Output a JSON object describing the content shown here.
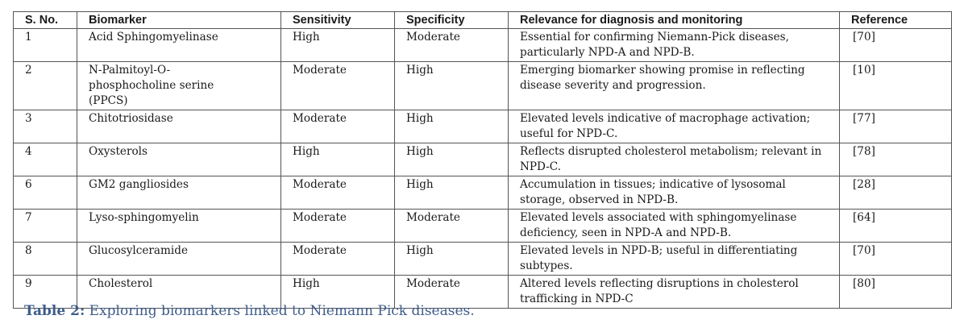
{
  "table": {
    "headers": [
      "S. No.",
      "Biomarker",
      "Sensitivity",
      "Specificity",
      "Relevance for diagnosis and monitoring",
      "Reference"
    ],
    "rows": [
      [
        "1",
        "Acid Sphingomyelinase",
        "High",
        "Moderate",
        "Essential for confirming Niemann-Pick diseases, particularly NPD-A and NPD-B.",
        "[70]"
      ],
      [
        "2",
        "N-Palmitoyl-O-phosphocholine serine (PPCS)",
        "Moderate",
        "High",
        "Emerging biomarker showing promise in reflecting disease severity and progression.",
        "[10]"
      ],
      [
        "3",
        "Chitotriosidase",
        "Moderate",
        "High",
        "Elevated levels indicative of macrophage activation; useful for NPD-C.",
        "[77]"
      ],
      [
        "4",
        "Oxysterols",
        "High",
        "High",
        "Reflects disrupted cholesterol metabolism; relevant in NPD-C.",
        "[78]"
      ],
      [
        "6",
        "GM2 gangliosides",
        "Moderate",
        "High",
        "Accumulation in tissues; indicative of lysosomal storage, observed in NPD-B.",
        "[28]"
      ],
      [
        "7",
        "Lyso-sphingomyelin",
        "Moderate",
        "Moderate",
        "Elevated levels associated with sphingomyelinase deficiency, seen in NPD-A and NPD-B.",
        "[64]"
      ],
      [
        "8",
        "Glucosylceramide",
        "Moderate",
        "High",
        "Elevated levels in NPD-B; useful in differentiating subtypes.",
        "[70]"
      ],
      [
        "9",
        "Cholesterol",
        "High",
        "Moderate",
        "Altered levels reflecting disruptions in cholesterol trafficking in NPD-C",
        "[80]"
      ]
    ]
  },
  "caption": {
    "label": "Table 2:",
    "text": " Exploring biomarkers linked to Niemann Pick diseases."
  }
}
